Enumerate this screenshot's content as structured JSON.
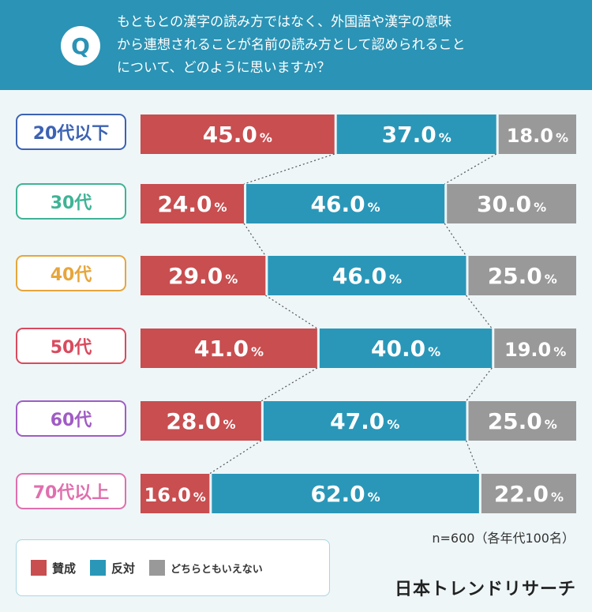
{
  "question": {
    "badge": "Q",
    "lines": [
      "もともとの漢字の読み方ではなく、外国語や漢字の意味",
      "から連想されることが名前の読み方として認められること",
      "について、どのように思いますか？"
    ]
  },
  "colors": {
    "header": "#2b93b5",
    "agree": "#c84e50",
    "disagree": "#2a97b8",
    "neither": "#999999"
  },
  "age_groups": [
    {
      "label": "20代以下",
      "color": "#3c62b3"
    },
    {
      "label": "30代",
      "color": "#3fb396"
    },
    {
      "label": "40代",
      "color": "#e6a63c"
    },
    {
      "label": "50代",
      "color": "#d94a5e"
    },
    {
      "label": "60代",
      "color": "#a05cc5"
    },
    {
      "label": "70代以上",
      "color": "#e06fae"
    }
  ],
  "chart_data": {
    "type": "bar",
    "stacked": "100%",
    "orientation": "horizontal",
    "categories": [
      "20代以下",
      "30代",
      "40代",
      "50代",
      "60代",
      "70代以上"
    ],
    "unit": "%",
    "series": [
      {
        "name": "賛成",
        "values": [
          45.0,
          24.0,
          29.0,
          41.0,
          28.0,
          16.0
        ],
        "color": "#c84e50"
      },
      {
        "name": "反対",
        "values": [
          37.0,
          46.0,
          46.0,
          40.0,
          47.0,
          62.0
        ],
        "color": "#2a97b8"
      },
      {
        "name": "どちらともいえない",
        "values": [
          18.0,
          30.0,
          25.0,
          19.0,
          25.0,
          22.0
        ],
        "color": "#999999"
      }
    ],
    "connector_lines": true,
    "legend_position": "bottom-left"
  },
  "sample_note": "n=600（各年代100名）",
  "legend": [
    {
      "label": "賛成",
      "color": "#c84e50"
    },
    {
      "label": "反対",
      "color": "#2a97b8"
    },
    {
      "label": "どちらともいえない",
      "color": "#999999"
    }
  ],
  "brand": "日本トレンドリサーチ"
}
